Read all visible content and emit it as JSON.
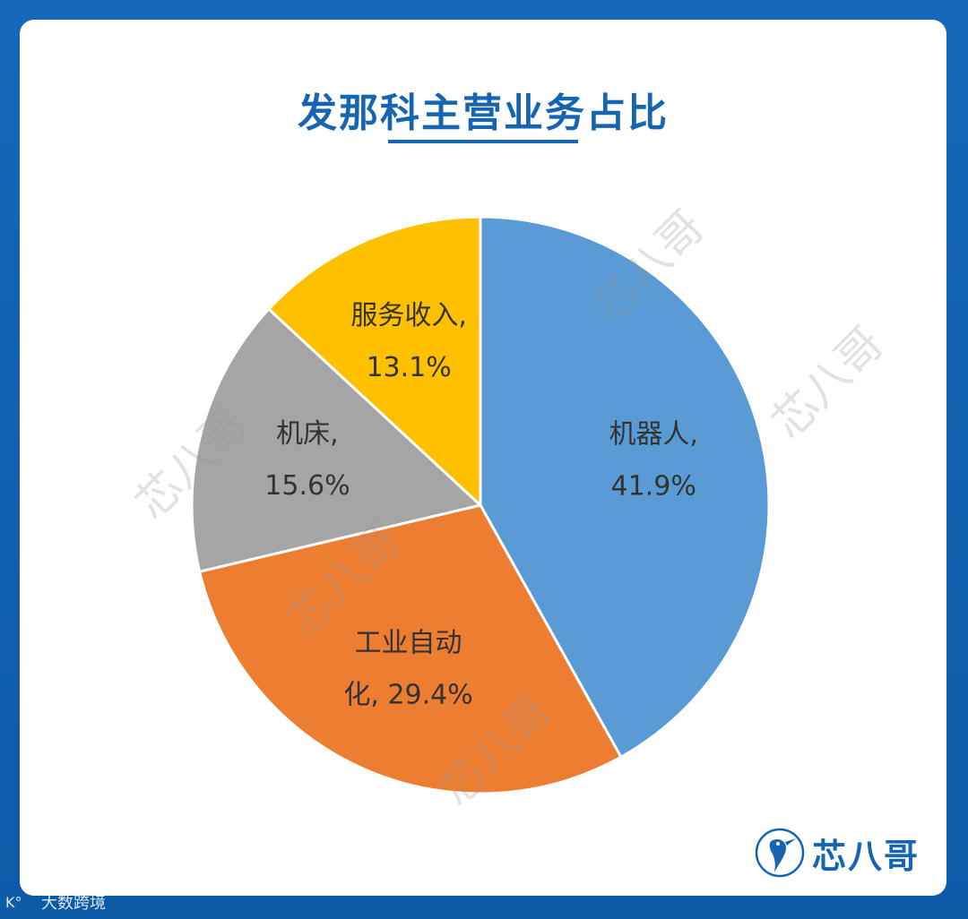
{
  "chart_data": {
    "type": "pie",
    "title": "发那科主营业务占比",
    "slices": [
      {
        "label_lines": [
          "机器人,",
          "41.9%"
        ],
        "value": 41.9,
        "color": "#5b9bd5"
      },
      {
        "label_lines": [
          "工业自动",
          "化, 29.4%"
        ],
        "value": 29.4,
        "color": "#ed7d31"
      },
      {
        "label_lines": [
          "机床,",
          "15.6%"
        ],
        "value": 15.6,
        "color": "#a5a5a5"
      },
      {
        "label_lines": [
          "服务收入,",
          "13.1%"
        ],
        "value": 13.1,
        "color": "#ffc000"
      }
    ],
    "start_angle_deg": 0,
    "direction": "clockwise",
    "legend": "none"
  },
  "watermark": {
    "text": "芯八哥"
  },
  "logo": {
    "text": "芯八哥"
  },
  "source_tag": {
    "text": "大数跨境"
  }
}
